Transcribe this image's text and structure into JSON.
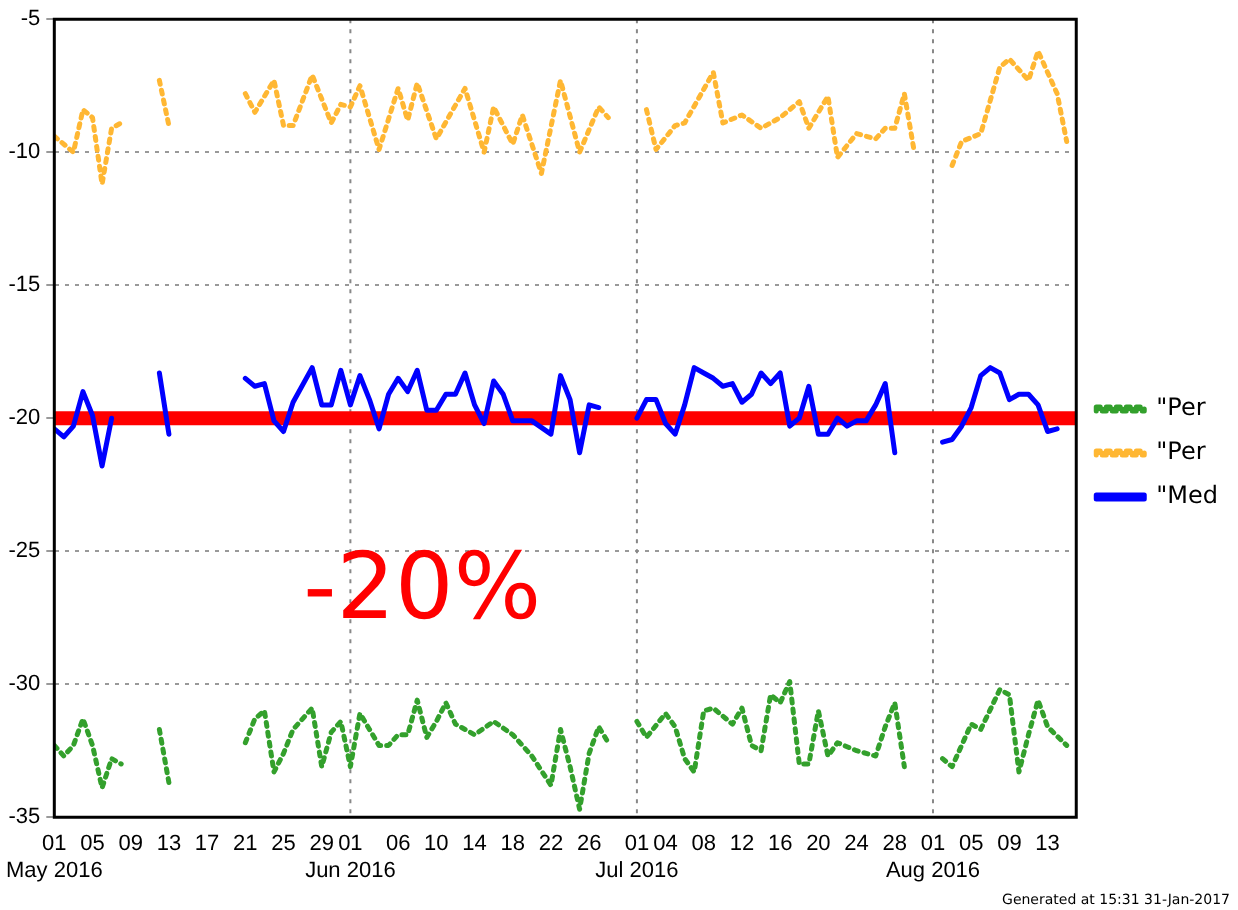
{
  "chart_data": {
    "type": "line",
    "xlim": [
      "2016-05-01",
      "2016-08-16"
    ],
    "ylim": [
      -35,
      -5
    ],
    "yticks": [
      -35,
      -30,
      -25,
      -20,
      -15,
      -10,
      -5
    ],
    "xticks": [
      {
        "value": "2016-05-01",
        "label": "01\nMay 2016"
      },
      {
        "value": "2016-05-05",
        "label": "05"
      },
      {
        "value": "2016-05-09",
        "label": "09"
      },
      {
        "value": "2016-05-13",
        "label": "13"
      },
      {
        "value": "2016-05-17",
        "label": "17"
      },
      {
        "value": "2016-05-21",
        "label": "21"
      },
      {
        "value": "2016-05-25",
        "label": "25"
      },
      {
        "value": "2016-05-29",
        "label": "29"
      },
      {
        "value": "2016-06-01",
        "label": "01\nJun 2016"
      },
      {
        "value": "2016-06-06",
        "label": "06"
      },
      {
        "value": "2016-06-10",
        "label": "10"
      },
      {
        "value": "2016-06-14",
        "label": "14"
      },
      {
        "value": "2016-06-18",
        "label": "18"
      },
      {
        "value": "2016-06-22",
        "label": "22"
      },
      {
        "value": "2016-06-26",
        "label": "26"
      },
      {
        "value": "2016-07-01",
        "label": "01\nJul 2016"
      },
      {
        "value": "2016-07-04",
        "label": "04"
      },
      {
        "value": "2016-07-08",
        "label": "08"
      },
      {
        "value": "2016-07-12",
        "label": "12"
      },
      {
        "value": "2016-07-16",
        "label": "16"
      },
      {
        "value": "2016-07-20",
        "label": "20"
      },
      {
        "value": "2016-07-24",
        "label": "24"
      },
      {
        "value": "2016-07-28",
        "label": "28"
      },
      {
        "value": "2016-08-01",
        "label": "01\nAug 2016"
      },
      {
        "value": "2016-08-05",
        "label": "05"
      },
      {
        "value": "2016-08-09",
        "label": "09"
      },
      {
        "value": "2016-08-13",
        "label": "13"
      }
    ],
    "grid": "y",
    "legend": "right",
    "marker": "none",
    "ref_lines": [
      {
        "axis": "x",
        "value": "2016-06-01",
        "color": "#888888",
        "line_style": "dotted"
      },
      {
        "axis": "x",
        "value": "2016-07-01",
        "color": "#888888",
        "line_style": "dotted"
      },
      {
        "axis": "x",
        "value": "2016-08-01",
        "color": "#888888",
        "line_style": "dotted"
      },
      {
        "axis": "y",
        "value": -20,
        "color": "#ff0000",
        "line_style": "solid"
      }
    ],
    "annotations": [
      "-20%",
      "Generated at 15:31 31-Jan-2017"
    ],
    "series": [
      {
        "name": "\"Per",
        "color": "#33a02c",
        "line_style": "dotted",
        "x": [
          "2016-05-01",
          "2016-05-02",
          "2016-05-03",
          "2016-05-04",
          "2016-05-05",
          "2016-05-06",
          "2016-05-07",
          "2016-05-08",
          "2016-05-10",
          "2016-05-12",
          "2016-05-13",
          "2016-05-17",
          "2016-05-21",
          "2016-05-22",
          "2016-05-23",
          "2016-05-24",
          "2016-05-25",
          "2016-05-26",
          "2016-05-28",
          "2016-05-29",
          "2016-05-30",
          "2016-05-31",
          "2016-06-01",
          "2016-06-02",
          "2016-06-03",
          "2016-06-04",
          "2016-06-05",
          "2016-06-06",
          "2016-06-07",
          "2016-06-08",
          "2016-06-09",
          "2016-06-10",
          "2016-06-11",
          "2016-06-12",
          "2016-06-14",
          "2016-06-16",
          "2016-06-18",
          "2016-06-20",
          "2016-06-22",
          "2016-06-23",
          "2016-06-24",
          "2016-06-25",
          "2016-06-26",
          "2016-06-27",
          "2016-06-28",
          "2016-06-29",
          "2016-07-01",
          "2016-07-02",
          "2016-07-04",
          "2016-07-05",
          "2016-07-06",
          "2016-07-07",
          "2016-07-08",
          "2016-07-09",
          "2016-07-11",
          "2016-07-12",
          "2016-07-13",
          "2016-07-14",
          "2016-07-15",
          "2016-07-16",
          "2016-07-17",
          "2016-07-18",
          "2016-07-19",
          "2016-07-20",
          "2016-07-21",
          "2016-07-22",
          "2016-07-24",
          "2016-07-26",
          "2016-07-27",
          "2016-07-28",
          "2016-07-29",
          "2016-07-31",
          "2016-08-02",
          "2016-08-03",
          "2016-08-05",
          "2016-08-06",
          "2016-08-08",
          "2016-08-09",
          "2016-08-10",
          "2016-08-11",
          "2016-08-12",
          "2016-08-13",
          "2016-08-15"
        ],
        "values": [
          -32.3,
          -32.7,
          -32.3,
          -31.3,
          -32.3,
          -33.9,
          -32.8,
          -33.0,
          null,
          -31.7,
          -33.7,
          null,
          -32.2,
          -31.3,
          -31.0,
          -33.3,
          -32.6,
          -31.7,
          -30.9,
          -33.1,
          -31.8,
          -31.4,
          -33.1,
          -31.1,
          -31.7,
          -32.3,
          -32.3,
          -31.9,
          -31.9,
          -30.6,
          -32.0,
          -31.4,
          -30.7,
          -31.5,
          -31.9,
          -31.4,
          -31.9,
          -32.7,
          -33.8,
          -31.7,
          -33.1,
          -34.7,
          -32.6,
          -31.6,
          -32.2,
          null,
          -31.4,
          -32.0,
          -31.1,
          -31.6,
          -32.8,
          -33.3,
          -31.0,
          -30.9,
          -31.5,
          -30.9,
          -32.3,
          -32.5,
          -30.4,
          -30.7,
          -29.9,
          -33.0,
          -33.0,
          -31.0,
          -32.7,
          -32.2,
          -32.5,
          -32.7,
          -31.6,
          -30.7,
          -33.1,
          null,
          -32.8,
          -33.1,
          -31.5,
          -31.7,
          -30.2,
          -30.4,
          -33.3,
          -31.9,
          -30.6,
          -31.6,
          -32.3
        ]
      },
      {
        "name": "\"Per",
        "color": "#ffb733",
        "line_style": "dotted",
        "x": [
          "2016-05-01",
          "2016-05-03",
          "2016-05-04",
          "2016-05-05",
          "2016-05-06",
          "2016-05-07",
          "2016-05-08",
          "2016-05-10",
          "2016-05-12",
          "2016-05-13",
          "2016-05-17",
          "2016-05-21",
          "2016-05-22",
          "2016-05-24",
          "2016-05-25",
          "2016-05-26",
          "2016-05-28",
          "2016-05-30",
          "2016-05-31",
          "2016-06-01",
          "2016-06-02",
          "2016-06-04",
          "2016-06-06",
          "2016-06-07",
          "2016-06-08",
          "2016-06-10",
          "2016-06-13",
          "2016-06-15",
          "2016-06-16",
          "2016-06-18",
          "2016-06-19",
          "2016-06-21",
          "2016-06-23",
          "2016-06-25",
          "2016-06-27",
          "2016-06-28",
          "2016-06-30",
          "2016-07-02",
          "2016-07-03",
          "2016-07-05",
          "2016-07-06",
          "2016-07-09",
          "2016-07-10",
          "2016-07-12",
          "2016-07-14",
          "2016-07-16",
          "2016-07-18",
          "2016-07-19",
          "2016-07-21",
          "2016-07-22",
          "2016-07-24",
          "2016-07-26",
          "2016-07-27",
          "2016-07-28",
          "2016-07-29",
          "2016-07-30",
          "2016-08-01",
          "2016-08-03",
          "2016-08-04",
          "2016-08-06",
          "2016-08-08",
          "2016-08-09",
          "2016-08-11",
          "2016-08-12",
          "2016-08-14",
          "2016-08-15"
        ],
        "values": [
          -9.4,
          -10.0,
          -8.4,
          -8.7,
          -11.2,
          -9.1,
          -8.9,
          null,
          -7.3,
          -9.0,
          null,
          -7.8,
          -8.5,
          -7.3,
          -9.0,
          -9.0,
          -7.1,
          -8.9,
          -8.2,
          -8.3,
          -7.5,
          -9.9,
          -7.6,
          -8.8,
          -7.4,
          -9.5,
          -7.6,
          -10.0,
          -8.3,
          -9.7,
          -8.6,
          -10.8,
          -7.3,
          -10.0,
          -8.3,
          -8.7,
          null,
          -8.4,
          -9.9,
          -9.0,
          -8.9,
          -7.0,
          -8.9,
          -8.6,
          -9.1,
          -8.7,
          -8.1,
          -9.1,
          -7.9,
          -10.2,
          -9.3,
          -9.5,
          -9.1,
          -9.1,
          -7.8,
          -9.9,
          null,
          -10.5,
          -9.6,
          -9.3,
          -6.8,
          -6.5,
          -7.3,
          -6.2,
          -7.8,
          -9.6
        ]
      },
      {
        "name": "\"Med",
        "color": "#0000ff",
        "line_style": "solid",
        "x": [
          "2016-05-01",
          "2016-05-02",
          "2016-05-03",
          "2016-05-04",
          "2016-05-05",
          "2016-05-06",
          "2016-05-07",
          "2016-05-10",
          "2016-05-12",
          "2016-05-13",
          "2016-05-17",
          "2016-05-21",
          "2016-05-22",
          "2016-05-23",
          "2016-05-24",
          "2016-05-25",
          "2016-05-26",
          "2016-05-28",
          "2016-05-29",
          "2016-05-30",
          "2016-05-31",
          "2016-06-01",
          "2016-06-02",
          "2016-06-03",
          "2016-06-04",
          "2016-06-05",
          "2016-06-06",
          "2016-06-07",
          "2016-06-08",
          "2016-06-09",
          "2016-06-10",
          "2016-06-11",
          "2016-06-12",
          "2016-06-13",
          "2016-06-14",
          "2016-06-15",
          "2016-06-16",
          "2016-06-17",
          "2016-06-18",
          "2016-06-20",
          "2016-06-22",
          "2016-06-23",
          "2016-06-24",
          "2016-06-25",
          "2016-06-26",
          "2016-06-27",
          "2016-06-29",
          "2016-07-01",
          "2016-07-02",
          "2016-07-03",
          "2016-07-04",
          "2016-07-05",
          "2016-07-06",
          "2016-07-07",
          "2016-07-08",
          "2016-07-09",
          "2016-07-10",
          "2016-07-11",
          "2016-07-12",
          "2016-07-13",
          "2016-07-14",
          "2016-07-15",
          "2016-07-16",
          "2016-07-17",
          "2016-07-18",
          "2016-07-19",
          "2016-07-20",
          "2016-07-21",
          "2016-07-22",
          "2016-07-23",
          "2016-07-24",
          "2016-07-25",
          "2016-07-26",
          "2016-07-27",
          "2016-07-28",
          "2016-07-30",
          "2016-08-02",
          "2016-08-03",
          "2016-08-04",
          "2016-08-05",
          "2016-08-06",
          "2016-08-07",
          "2016-08-08",
          "2016-08-09",
          "2016-08-10",
          "2016-08-11",
          "2016-08-12",
          "2016-08-13",
          "2016-08-14"
        ],
        "values": [
          -20.4,
          -20.7,
          -20.3,
          -19.0,
          -19.9,
          -21.8,
          -20.0,
          null,
          -18.3,
          -20.6,
          null,
          -18.5,
          -18.8,
          -18.7,
          -20.1,
          -20.5,
          -19.4,
          -18.1,
          -19.5,
          -19.5,
          -18.2,
          -19.5,
          -18.4,
          -19.3,
          -20.4,
          -19.1,
          -18.5,
          -19.0,
          -18.2,
          -19.7,
          -19.7,
          -19.1,
          -19.1,
          -18.3,
          -19.5,
          -20.2,
          -18.6,
          -19.1,
          -20.1,
          -20.1,
          -20.6,
          -18.4,
          -19.3,
          -21.3,
          -19.5,
          -19.6,
          null,
          -20.0,
          -19.3,
          -19.3,
          -20.2,
          -20.6,
          -19.5,
          -18.1,
          -18.3,
          -18.5,
          -18.8,
          -18.7,
          -19.4,
          -19.1,
          -18.3,
          -18.7,
          -18.3,
          -20.3,
          -20.0,
          -18.8,
          -20.6,
          -20.6,
          -20.0,
          -20.3,
          -20.1,
          -20.1,
          -19.5,
          -18.7,
          -21.3,
          null,
          -20.9,
          -20.8,
          -20.3,
          -19.6,
          -18.4,
          -18.1,
          -18.3,
          -19.3,
          -19.1,
          -19.1,
          -19.5,
          -20.5,
          -20.4
        ]
      }
    ]
  }
}
